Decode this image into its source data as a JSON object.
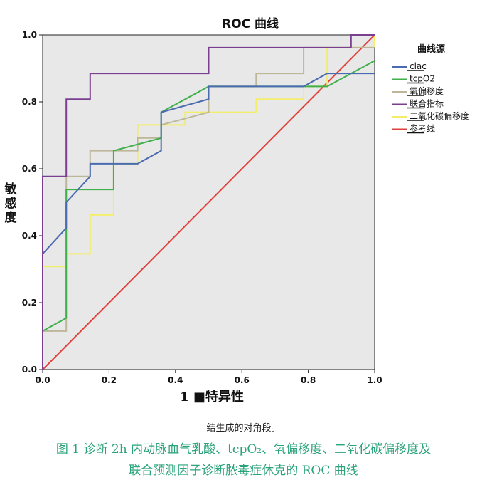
{
  "chart_data": {
    "type": "line",
    "title": "ROC 曲线",
    "xlabel": "1 ■特异性",
    "ylabel": "敏感度",
    "xlim": [
      0,
      1
    ],
    "ylim": [
      0,
      1
    ],
    "xticks": [
      "0.0",
      "0.2",
      "0.4",
      "0.6",
      "0.8",
      "1.0"
    ],
    "yticks": [
      "0.0",
      "0.2",
      "0.4",
      "0.6",
      "0.8",
      "1.0"
    ],
    "grid": false,
    "legend_title": "曲线源",
    "legend_position": "right",
    "series": [
      {
        "name": "clac",
        "color": "#4a6bb0",
        "x": [
          0,
          0,
          0.071,
          0.071,
          0.143,
          0.143,
          0.286,
          0.357,
          0.357,
          0.5,
          0.5,
          0.786,
          0.857,
          1.0
        ],
        "y": [
          0,
          0.346,
          0.423,
          0.5,
          0.577,
          0.615,
          0.615,
          0.654,
          0.769,
          0.808,
          0.846,
          0.846,
          0.885,
          0.885
        ]
      },
      {
        "name": "tcpO2",
        "color": "#3fb04a",
        "x": [
          0,
          0,
          0.071,
          0.071,
          0.214,
          0.214,
          0.357,
          0.357,
          0.5,
          0.857,
          1.0
        ],
        "y": [
          0,
          0.115,
          0.154,
          0.538,
          0.538,
          0.654,
          0.692,
          0.769,
          0.846,
          0.846,
          0.923
        ]
      },
      {
        "name": "氧偏移度",
        "color": "#bdb79a",
        "x": [
          0,
          0,
          0.071,
          0.071,
          0.143,
          0.143,
          0.286,
          0.286,
          0.357,
          0.357,
          0.5,
          0.5,
          0.643,
          0.643,
          0.786,
          0.786,
          1.0
        ],
        "y": [
          0,
          0.115,
          0.115,
          0.577,
          0.577,
          0.654,
          0.654,
          0.692,
          0.692,
          0.731,
          0.769,
          0.846,
          0.846,
          0.885,
          0.885,
          0.962,
          0.962
        ]
      },
      {
        "name": "联合指标",
        "color": "#7a3f91",
        "x": [
          0,
          0,
          0.071,
          0.071,
          0.143,
          0.143,
          0.5,
          0.5,
          0.929,
          0.929,
          1.0
        ],
        "y": [
          0,
          0.577,
          0.577,
          0.808,
          0.808,
          0.885,
          0.885,
          0.962,
          0.962,
          1.0,
          1.0
        ]
      },
      {
        "name": "二氧化碳偏移度",
        "color": "#f2ee6a",
        "x": [
          0,
          0,
          0.071,
          0.071,
          0.143,
          0.143,
          0.214,
          0.214,
          0.286,
          0.286,
          0.429,
          0.429,
          0.643,
          0.643,
          0.786,
          0.786,
          0.857,
          0.857,
          1.0,
          1.0
        ],
        "y": [
          0,
          0.308,
          0.308,
          0.346,
          0.346,
          0.462,
          0.462,
          0.615,
          0.615,
          0.731,
          0.731,
          0.769,
          0.769,
          0.808,
          0.808,
          0.846,
          0.846,
          0.962,
          0.962,
          1.0
        ]
      },
      {
        "name": "参考线",
        "color": "#e0403a",
        "x": [
          0,
          1
        ],
        "y": [
          0,
          1
        ]
      }
    ]
  },
  "figure_note": "结生成的对角段。",
  "caption": {
    "line1": "图 1 诊断 2h 内动脉血气乳酸、tcpO₂、氧偏移度、二氧化碳偏移度及",
    "line2": "联合预测因子诊断脓毒症休克的 ROC 曲线"
  }
}
